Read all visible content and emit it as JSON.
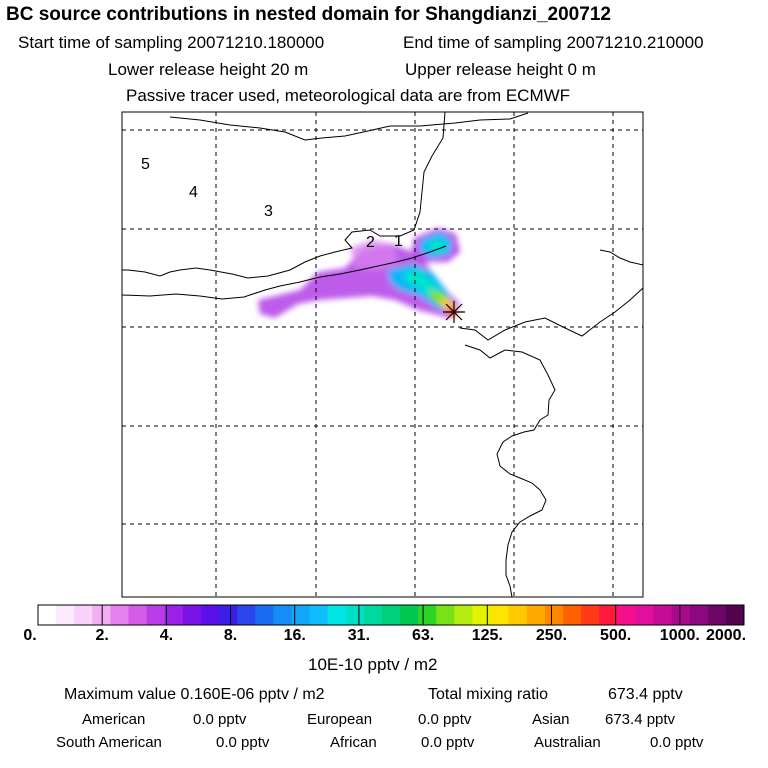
{
  "header": {
    "title": "BC  source contributions in nested domain for Shangdianzi_200712",
    "start_time": "Start time of sampling 20071210.180000",
    "end_time": "End time of sampling 20071210.210000",
    "lower_height": "Lower release height   20 m",
    "upper_height": "Upper release height    0 m",
    "tracer_note": "Passive tracer used, meteorological data are from ECMWF"
  },
  "map": {
    "day_markers": [
      "5",
      "4",
      "3",
      "2",
      "1"
    ],
    "station_marker": "receptor-star-icon"
  },
  "colorbar": {
    "ticks": [
      "0.",
      "2.",
      "4.",
      "8.",
      "16.",
      "31.",
      "63.",
      "125.",
      "250.",
      "500.",
      "1000.",
      "2000."
    ],
    "colors": [
      "#ffffff",
      "#fde9fd",
      "#f9d0f9",
      "#f2b0f2",
      "#e680ec",
      "#d45ce8",
      "#b83de8",
      "#9b22e6",
      "#7a14e6",
      "#5a10e6",
      "#3d1ee6",
      "#2a46ec",
      "#1a6cf2",
      "#158cf6",
      "#11a6fa",
      "#0fbcfc",
      "#00e6e6",
      "#00e0c6",
      "#00d8a0",
      "#00d07a",
      "#00c850",
      "#2cd428",
      "#7ae018",
      "#b4ec10",
      "#e4f400",
      "#ffe400",
      "#ffc800",
      "#ffaa00",
      "#ff8800",
      "#ff6000",
      "#ff3a18",
      "#ff1a3c",
      "#f4108c",
      "#e20e9c",
      "#c40c96",
      "#a80a8c",
      "#8c0880",
      "#6e0666",
      "#52044c"
    ],
    "unit": "10E-10 pptv / m2"
  },
  "stats": {
    "maximum": "Maximum value  0.160E-06 pptv / m2",
    "total": "Total mixing ratio",
    "total_value": "673.4 pptv",
    "regions": [
      {
        "name": "American",
        "value": "0.0 pptv"
      },
      {
        "name": "European",
        "value": "0.0 pptv"
      },
      {
        "name": "Asian",
        "value": "673.4 pptv"
      },
      {
        "name": "South American",
        "value": "0.0 pptv"
      },
      {
        "name": "African",
        "value": "0.0 pptv"
      },
      {
        "name": "Australian",
        "value": "0.0 pptv"
      }
    ]
  }
}
